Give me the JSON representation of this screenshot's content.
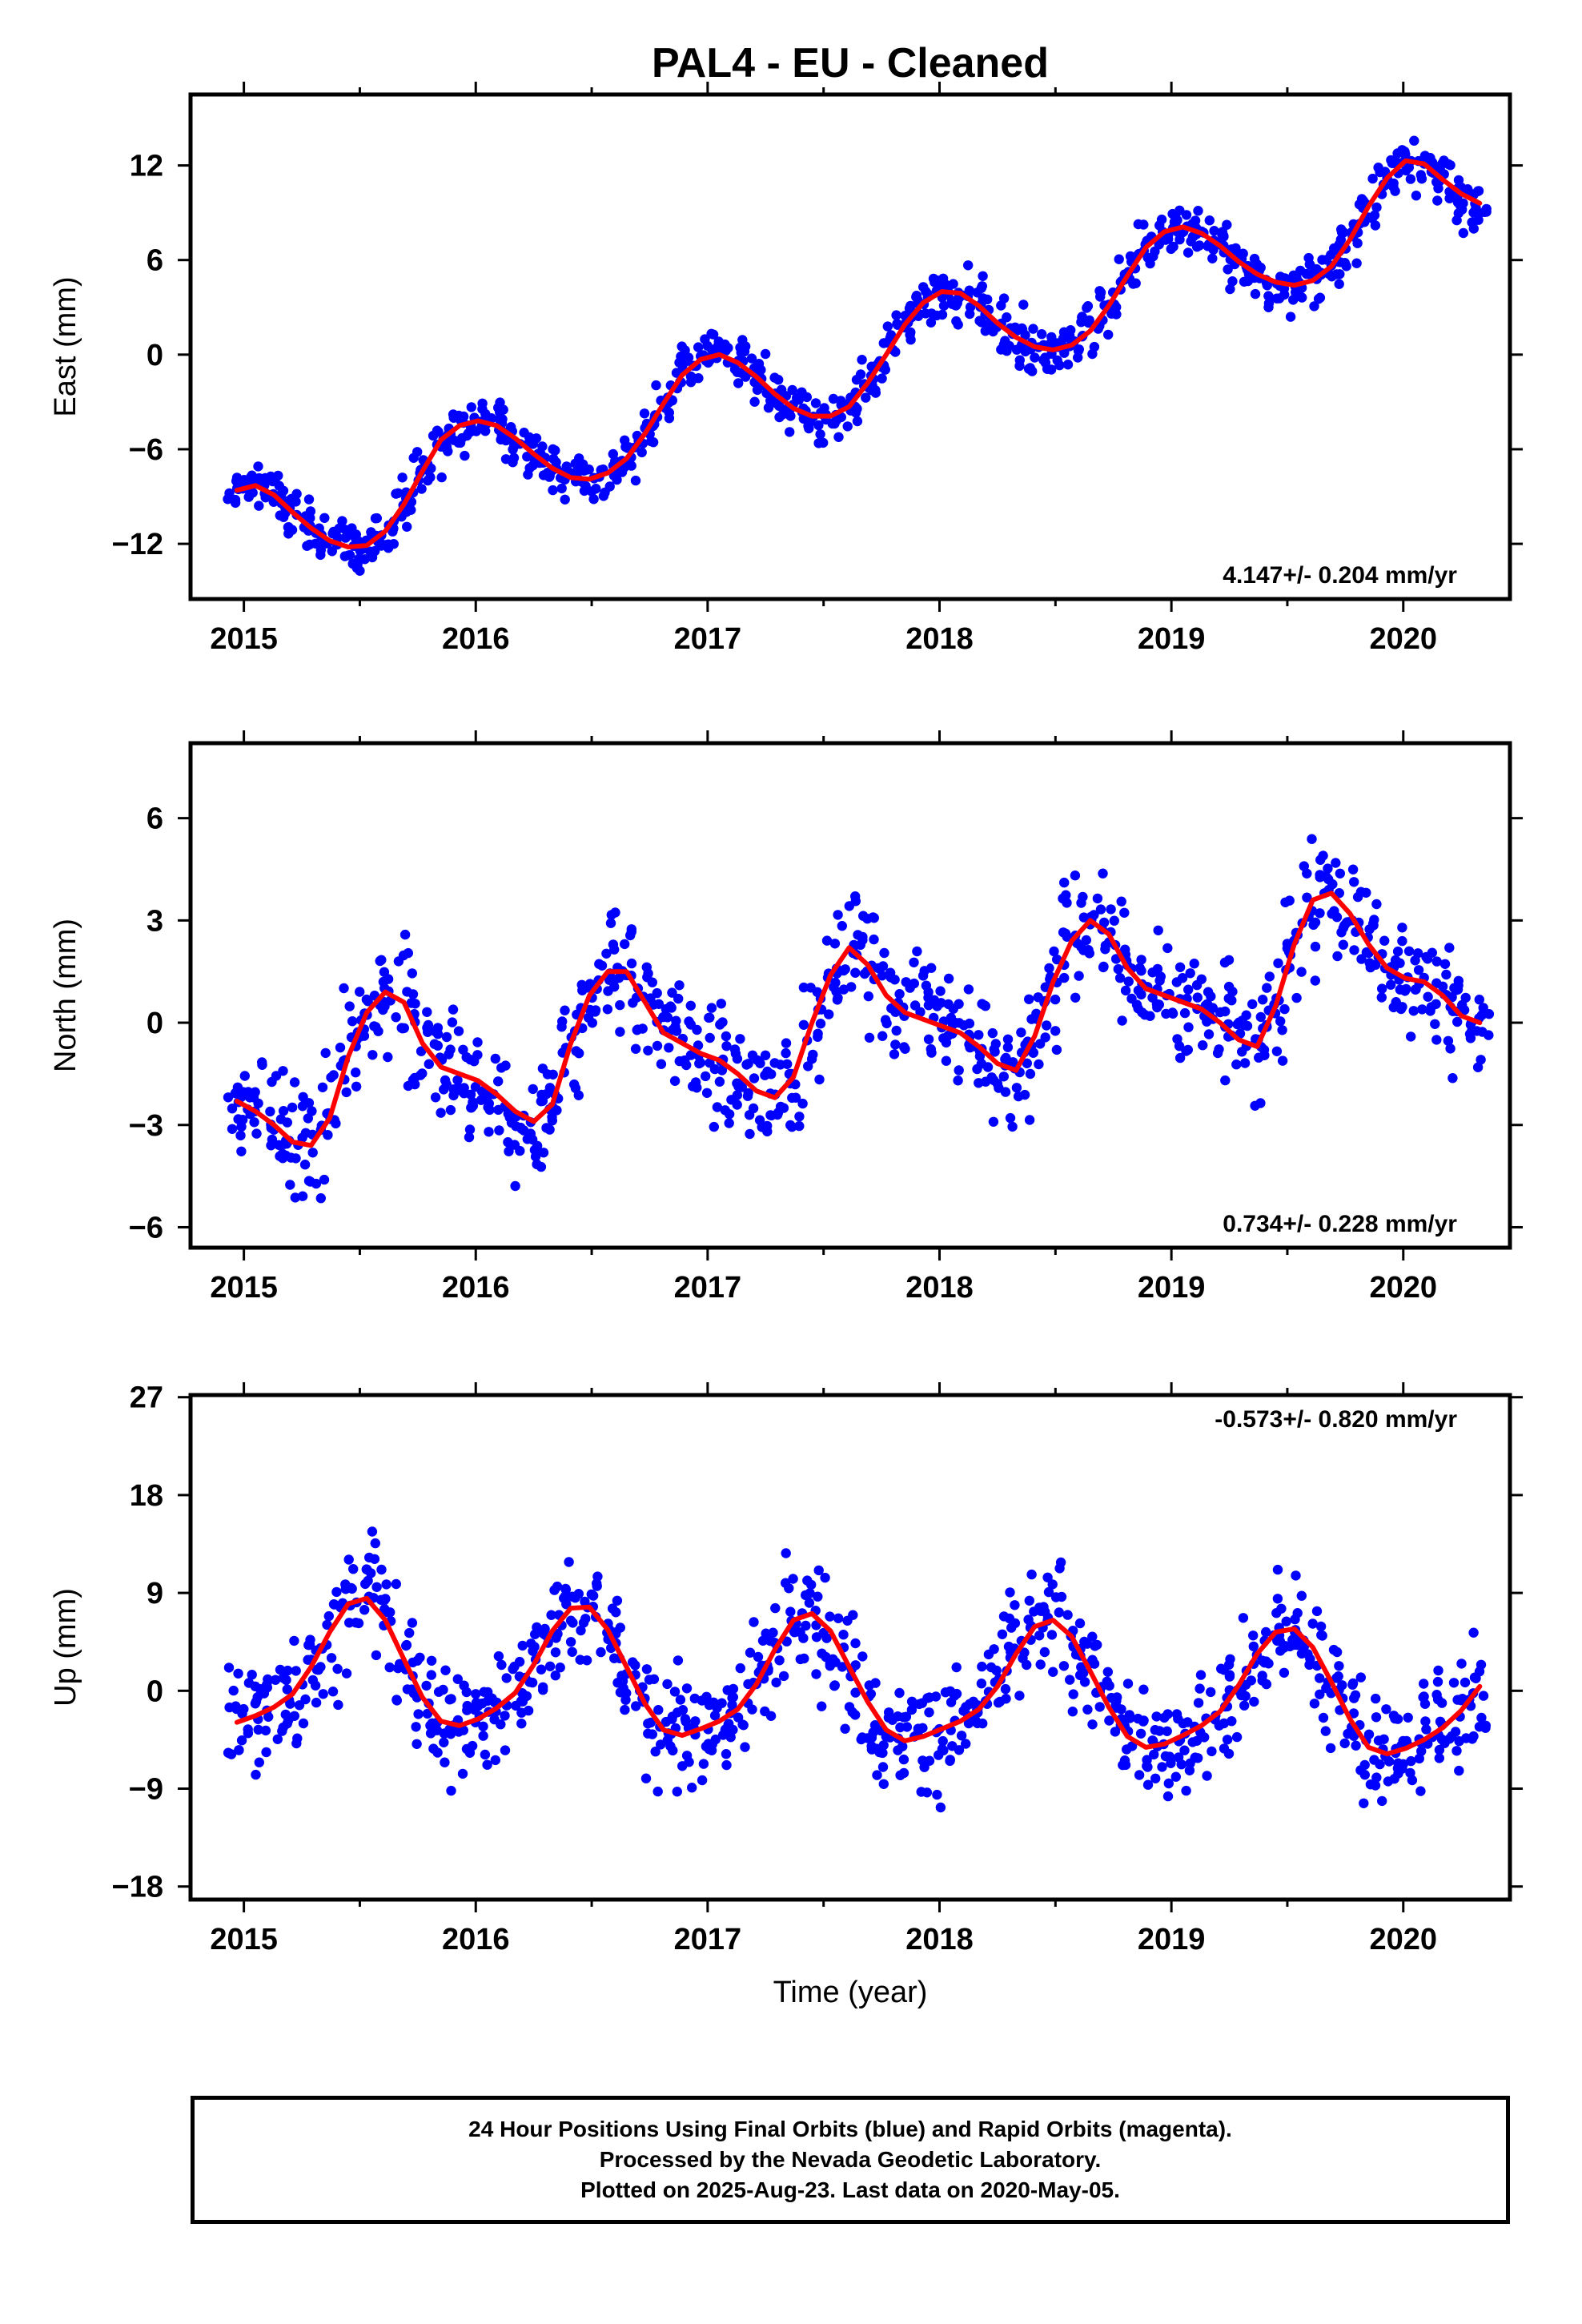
{
  "title": "PAL4  - EU - Cleaned",
  "colors": {
    "points": "#0000ff",
    "fit": "#ff0000",
    "frame": "#000000"
  },
  "footer": {
    "line1": "24 Hour Positions Using Final Orbits (blue) and Rapid Orbits (magenta).",
    "line2": "Processed by the Nevada Geodetic Laboratory.",
    "line3": "Plotted on 2025-Aug-23. Last data on 2020-May-05."
  },
  "chart_data": [
    {
      "type": "scatter",
      "title": "PAL4  - EU - Cleaned",
      "ylabel": "East (mm)",
      "xlabel": "",
      "xlim": [
        2014.77,
        2020.46
      ],
      "ylim": [
        -15.5,
        16.5
      ],
      "x_ticks": [
        2015,
        2016,
        2017,
        2018,
        2019,
        2020
      ],
      "y_ticks": [
        -12,
        -6,
        0,
        6,
        12
      ],
      "rate_label": "4.147+/- 0.204 mm/yr",
      "rate_position": "bottom-right",
      "series": [
        {
          "style": "points",
          "color": "#0000ff",
          "x": [
            2014.97,
            2015.05,
            2015.13,
            2015.21,
            2015.29,
            2015.37,
            2015.45,
            2015.53,
            2015.61,
            2015.69,
            2015.77,
            2015.85,
            2015.93,
            2016.01,
            2016.09,
            2016.17,
            2016.25,
            2016.33,
            2016.41,
            2016.49,
            2016.57,
            2016.65,
            2016.73,
            2016.81,
            2016.89,
            2016.97,
            2017.05,
            2017.13,
            2017.21,
            2017.29,
            2017.37,
            2017.45,
            2017.53,
            2017.61,
            2017.69,
            2017.77,
            2017.85,
            2017.93,
            2018.01,
            2018.09,
            2018.17,
            2018.25,
            2018.33,
            2018.41,
            2018.49,
            2018.57,
            2018.65,
            2018.73,
            2018.81,
            2018.89,
            2018.97,
            2019.05,
            2019.13,
            2019.21,
            2019.29,
            2019.37,
            2019.45,
            2019.53,
            2019.61,
            2019.69,
            2019.77,
            2019.85,
            2019.93,
            2020.01,
            2020.09,
            2020.17,
            2020.25,
            2020.33
          ],
          "y": [
            -8.6,
            -8.3,
            -8.9,
            -10.0,
            -11.0,
            -11.8,
            -12.2,
            -12.1,
            -11.2,
            -9.5,
            -7.4,
            -5.4,
            -4.5,
            -4.2,
            -4.5,
            -5.3,
            -6.3,
            -7.2,
            -7.8,
            -7.9,
            -7.5,
            -6.6,
            -5.0,
            -3.1,
            -1.3,
            -0.3,
            0.0,
            -0.5,
            -1.4,
            -2.5,
            -3.4,
            -3.9,
            -3.9,
            -3.3,
            -1.8,
            0.0,
            1.9,
            3.3,
            4.0,
            3.9,
            3.1,
            2.0,
            1.1,
            0.5,
            0.3,
            0.6,
            1.5,
            3.1,
            5.0,
            6.8,
            7.8,
            8.1,
            7.7,
            6.9,
            5.9,
            5.1,
            4.6,
            4.4,
            4.7,
            5.6,
            7.3,
            9.4,
            11.2,
            12.3,
            12.1,
            11.1,
            10.2,
            9.6
          ]
        },
        {
          "style": "line",
          "color": "#ff0000",
          "x": [
            2014.97,
            2015.05,
            2015.13,
            2015.21,
            2015.29,
            2015.37,
            2015.45,
            2015.53,
            2015.61,
            2015.69,
            2015.77,
            2015.85,
            2015.93,
            2016.01,
            2016.09,
            2016.17,
            2016.25,
            2016.33,
            2016.41,
            2016.49,
            2016.57,
            2016.65,
            2016.73,
            2016.81,
            2016.89,
            2016.97,
            2017.05,
            2017.13,
            2017.21,
            2017.29,
            2017.37,
            2017.45,
            2017.53,
            2017.61,
            2017.69,
            2017.77,
            2017.85,
            2017.93,
            2018.01,
            2018.09,
            2018.17,
            2018.25,
            2018.33,
            2018.41,
            2018.49,
            2018.57,
            2018.65,
            2018.73,
            2018.81,
            2018.89,
            2018.97,
            2019.05,
            2019.13,
            2019.21,
            2019.29,
            2019.37,
            2019.45,
            2019.53,
            2019.61,
            2019.69,
            2019.77,
            2019.85,
            2019.93,
            2020.01,
            2020.09,
            2020.17,
            2020.25,
            2020.33
          ],
          "y": [
            -8.6,
            -8.3,
            -8.9,
            -10.0,
            -11.0,
            -11.8,
            -12.2,
            -12.1,
            -11.2,
            -9.5,
            -7.4,
            -5.4,
            -4.5,
            -4.2,
            -4.5,
            -5.3,
            -6.3,
            -7.2,
            -7.8,
            -7.9,
            -7.5,
            -6.6,
            -5.0,
            -3.1,
            -1.3,
            -0.3,
            0.0,
            -0.5,
            -1.4,
            -2.5,
            -3.4,
            -3.9,
            -3.9,
            -3.3,
            -1.8,
            0.0,
            1.9,
            3.3,
            4.0,
            3.9,
            3.1,
            2.0,
            1.1,
            0.5,
            0.3,
            0.6,
            1.5,
            3.1,
            5.0,
            6.8,
            7.8,
            8.1,
            7.7,
            6.9,
            5.9,
            5.1,
            4.6,
            4.4,
            4.7,
            5.6,
            7.3,
            9.4,
            11.2,
            12.3,
            12.1,
            11.1,
            10.2,
            9.6
          ]
        }
      ]
    },
    {
      "type": "scatter",
      "ylabel": "North (mm)",
      "xlabel": "",
      "xlim": [
        2014.77,
        2020.46
      ],
      "ylim": [
        -6.6,
        8.2
      ],
      "x_ticks": [
        2015,
        2016,
        2017,
        2018,
        2019,
        2020
      ],
      "y_ticks": [
        -6,
        -3,
        0,
        3,
        6
      ],
      "rate_label": "0.734+/- 0.228 mm/yr",
      "rate_position": "bottom-right",
      "series": [
        {
          "style": "points",
          "color": "#0000ff",
          "x": [
            2014.97,
            2015.05,
            2015.13,
            2015.21,
            2015.29,
            2015.37,
            2015.45,
            2015.53,
            2015.61,
            2015.69,
            2015.77,
            2015.85,
            2015.93,
            2016.01,
            2016.09,
            2016.17,
            2016.25,
            2016.33,
            2016.41,
            2016.49,
            2016.57,
            2016.65,
            2016.73,
            2016.81,
            2016.89,
            2016.97,
            2017.05,
            2017.13,
            2017.21,
            2017.29,
            2017.37,
            2017.45,
            2017.53,
            2017.61,
            2017.69,
            2017.77,
            2017.85,
            2017.93,
            2018.01,
            2018.09,
            2018.17,
            2018.25,
            2018.33,
            2018.41,
            2018.49,
            2018.57,
            2018.65,
            2018.73,
            2018.81,
            2018.89,
            2018.97,
            2019.05,
            2019.13,
            2019.21,
            2019.29,
            2019.37,
            2019.45,
            2019.53,
            2019.61,
            2019.69,
            2019.77,
            2019.85,
            2019.93,
            2020.01,
            2020.09,
            2020.17,
            2020.25,
            2020.33
          ],
          "y": [
            -2.3,
            -2.6,
            -3.0,
            -3.5,
            -3.6,
            -2.8,
            -1.0,
            0.3,
            0.9,
            0.6,
            -0.6,
            -1.3,
            -1.5,
            -1.7,
            -2.1,
            -2.6,
            -2.9,
            -2.4,
            -0.6,
            0.8,
            1.5,
            1.5,
            0.6,
            -0.3,
            -0.6,
            -0.9,
            -1.1,
            -1.5,
            -2.0,
            -2.2,
            -1.6,
            0.0,
            1.4,
            2.2,
            1.7,
            0.8,
            0.3,
            0.1,
            -0.1,
            -0.3,
            -0.7,
            -1.2,
            -1.4,
            -0.4,
            1.2,
            2.4,
            3.0,
            2.6,
            1.6,
            1.0,
            0.8,
            0.6,
            0.4,
            0.0,
            -0.5,
            -0.7,
            0.5,
            2.3,
            3.6,
            3.8,
            3.2,
            2.3,
            1.6,
            1.3,
            1.2,
            0.8,
            0.2,
            0.0
          ]
        },
        {
          "style": "line",
          "color": "#ff0000",
          "x": [
            2014.97,
            2015.05,
            2015.13,
            2015.21,
            2015.29,
            2015.37,
            2015.45,
            2015.53,
            2015.61,
            2015.69,
            2015.77,
            2015.85,
            2015.93,
            2016.01,
            2016.09,
            2016.17,
            2016.25,
            2016.33,
            2016.41,
            2016.49,
            2016.57,
            2016.65,
            2016.73,
            2016.81,
            2016.89,
            2016.97,
            2017.05,
            2017.13,
            2017.21,
            2017.29,
            2017.37,
            2017.45,
            2017.53,
            2017.61,
            2017.69,
            2017.77,
            2017.85,
            2017.93,
            2018.01,
            2018.09,
            2018.17,
            2018.25,
            2018.33,
            2018.41,
            2018.49,
            2018.57,
            2018.65,
            2018.73,
            2018.81,
            2018.89,
            2018.97,
            2019.05,
            2019.13,
            2019.21,
            2019.29,
            2019.37,
            2019.45,
            2019.53,
            2019.61,
            2019.69,
            2019.77,
            2019.85,
            2019.93,
            2020.01,
            2020.09,
            2020.17,
            2020.25,
            2020.33
          ],
          "y": [
            -2.3,
            -2.6,
            -3.0,
            -3.5,
            -3.6,
            -2.8,
            -1.0,
            0.3,
            0.9,
            0.6,
            -0.6,
            -1.3,
            -1.5,
            -1.7,
            -2.1,
            -2.6,
            -2.9,
            -2.4,
            -0.6,
            0.8,
            1.5,
            1.5,
            0.6,
            -0.3,
            -0.6,
            -0.9,
            -1.1,
            -1.5,
            -2.0,
            -2.2,
            -1.6,
            0.0,
            1.4,
            2.2,
            1.7,
            0.8,
            0.3,
            0.1,
            -0.1,
            -0.3,
            -0.7,
            -1.2,
            -1.4,
            -0.4,
            1.2,
            2.4,
            3.0,
            2.6,
            1.6,
            1.0,
            0.8,
            0.6,
            0.4,
            0.0,
            -0.5,
            -0.7,
            0.5,
            2.3,
            3.6,
            3.8,
            3.2,
            2.3,
            1.6,
            1.3,
            1.2,
            0.8,
            0.2,
            0.0
          ]
        }
      ]
    },
    {
      "type": "scatter",
      "ylabel": "Up (mm)",
      "xlabel": "Time (year)",
      "xlim": [
        2014.77,
        2020.46
      ],
      "ylim": [
        -19.2,
        27.2
      ],
      "x_ticks": [
        2015,
        2016,
        2017,
        2018,
        2019,
        2020
      ],
      "y_ticks": [
        -18,
        -9,
        0,
        9,
        18,
        27
      ],
      "rate_label": "-0.573+/- 0.820 mm/yr",
      "rate_position": "top-right",
      "series": [
        {
          "style": "points",
          "color": "#0000ff",
          "x": [
            2014.97,
            2015.05,
            2015.13,
            2015.21,
            2015.29,
            2015.37,
            2015.45,
            2015.53,
            2015.61,
            2015.69,
            2015.77,
            2015.85,
            2015.93,
            2016.01,
            2016.09,
            2016.17,
            2016.25,
            2016.33,
            2016.41,
            2016.49,
            2016.57,
            2016.65,
            2016.73,
            2016.81,
            2016.89,
            2016.97,
            2017.05,
            2017.13,
            2017.21,
            2017.29,
            2017.37,
            2017.45,
            2017.53,
            2017.61,
            2017.69,
            2017.77,
            2017.85,
            2017.93,
            2018.01,
            2018.09,
            2018.17,
            2018.25,
            2018.33,
            2018.41,
            2018.49,
            2018.57,
            2018.65,
            2018.73,
            2018.81,
            2018.89,
            2018.97,
            2019.05,
            2019.13,
            2019.21,
            2019.29,
            2019.37,
            2019.45,
            2019.53,
            2019.61,
            2019.69,
            2019.77,
            2019.85,
            2019.93,
            2020.01,
            2020.09,
            2020.17,
            2020.25,
            2020.33
          ],
          "y": [
            -2.9,
            -2.3,
            -1.5,
            -0.3,
            2.2,
            5.4,
            8.0,
            8.5,
            6.5,
            2.9,
            -0.6,
            -2.8,
            -3.2,
            -2.6,
            -1.6,
            -0.2,
            2.4,
            5.5,
            7.6,
            7.7,
            5.6,
            2.2,
            -1.2,
            -3.6,
            -4.1,
            -3.5,
            -2.8,
            -1.7,
            0.6,
            3.8,
            6.5,
            7.1,
            5.5,
            2.2,
            -1.0,
            -3.6,
            -4.6,
            -4.2,
            -3.5,
            -2.8,
            -1.7,
            0.4,
            3.4,
            5.9,
            6.5,
            5.0,
            1.8,
            -1.5,
            -4.2,
            -5.2,
            -4.9,
            -4.1,
            -3.2,
            -1.9,
            0.5,
            3.4,
            5.4,
            5.7,
            4.0,
            0.8,
            -2.6,
            -5.2,
            -5.8,
            -5.3,
            -4.5,
            -3.4,
            -1.8,
            0.4
          ]
        },
        {
          "style": "line",
          "color": "#ff0000",
          "x": [
            2014.97,
            2015.05,
            2015.13,
            2015.21,
            2015.29,
            2015.37,
            2015.45,
            2015.53,
            2015.61,
            2015.69,
            2015.77,
            2015.85,
            2015.93,
            2016.01,
            2016.09,
            2016.17,
            2016.25,
            2016.33,
            2016.41,
            2016.49,
            2016.57,
            2016.65,
            2016.73,
            2016.81,
            2016.89,
            2016.97,
            2017.05,
            2017.13,
            2017.21,
            2017.29,
            2017.37,
            2017.45,
            2017.53,
            2017.61,
            2017.69,
            2017.77,
            2017.85,
            2017.93,
            2018.01,
            2018.09,
            2018.17,
            2018.25,
            2018.33,
            2018.41,
            2018.49,
            2018.57,
            2018.65,
            2018.73,
            2018.81,
            2018.89,
            2018.97,
            2019.05,
            2019.13,
            2019.21,
            2019.29,
            2019.37,
            2019.45,
            2019.53,
            2019.61,
            2019.69,
            2019.77,
            2019.85,
            2019.93,
            2020.01,
            2020.09,
            2020.17,
            2020.25,
            2020.33
          ],
          "y": [
            -2.9,
            -2.3,
            -1.5,
            -0.3,
            2.2,
            5.4,
            8.0,
            8.5,
            6.5,
            2.9,
            -0.6,
            -2.8,
            -3.2,
            -2.6,
            -1.6,
            -0.2,
            2.4,
            5.5,
            7.6,
            7.7,
            5.6,
            2.2,
            -1.2,
            -3.6,
            -4.1,
            -3.5,
            -2.8,
            -1.7,
            0.6,
            3.8,
            6.5,
            7.1,
            5.5,
            2.2,
            -1.0,
            -3.6,
            -4.6,
            -4.2,
            -3.5,
            -2.8,
            -1.7,
            0.4,
            3.4,
            5.9,
            6.5,
            5.0,
            1.8,
            -1.5,
            -4.2,
            -5.2,
            -4.9,
            -4.1,
            -3.2,
            -1.9,
            0.5,
            3.4,
            5.4,
            5.7,
            4.0,
            0.8,
            -2.6,
            -5.2,
            -5.8,
            -5.3,
            -4.5,
            -3.4,
            -1.8,
            0.4
          ]
        }
      ]
    }
  ]
}
